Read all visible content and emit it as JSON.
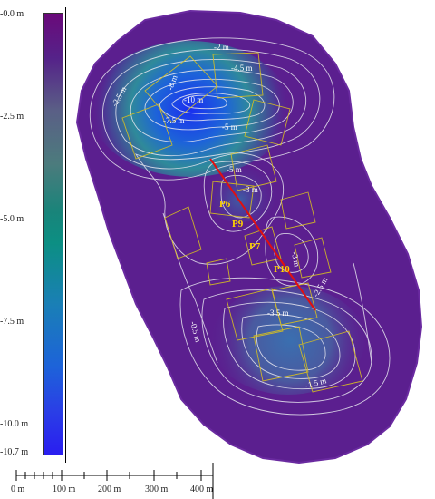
{
  "legend": {
    "ticks": [
      "-0.0 m",
      "-2.5 m",
      "-5.0 m",
      "-7.5 m",
      "-10.0 m",
      "-10.7 m"
    ]
  },
  "contour_labels": [
    "-2 m",
    "-4.5 m",
    "-2.5 m",
    "-8 m",
    "-10 m",
    "-7.5 m",
    "-5 m",
    "-5 m",
    "-3 m",
    "-3 m",
    "-0.5 m",
    "-2.5 m",
    "-3.5 m",
    "-1.5 m"
  ],
  "profiles": [
    "P6",
    "P9",
    "P7",
    "P10"
  ],
  "scalebar": {
    "labels": [
      "0 m",
      "100 m",
      "200 m",
      "300 m",
      "400 m"
    ]
  },
  "colors": {
    "deep": "#2a1ef0",
    "mid": "#0c8f83",
    "shallow": "#6a0a7a",
    "profile_line": "#e01010",
    "profile_label": "#ffd400"
  }
}
